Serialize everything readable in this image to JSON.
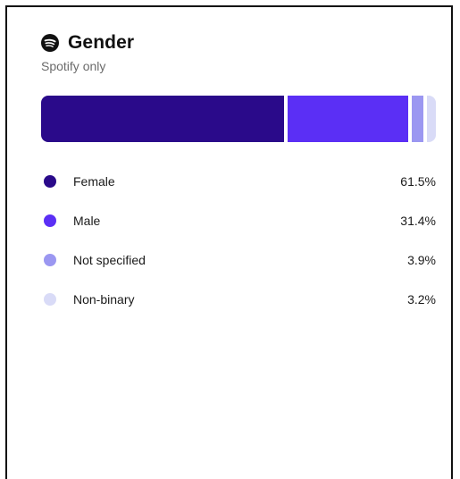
{
  "card": {
    "title": "Gender",
    "subtitle": "Spotify only",
    "icon": "spotify-logo-icon"
  },
  "chart_data": {
    "type": "bar",
    "orientation": "horizontal-stacked",
    "title": "Gender",
    "subtitle": "Spotify only",
    "categories": [
      "Female",
      "Male",
      "Not specified",
      "Non-binary"
    ],
    "values": [
      61.5,
      31.4,
      3.9,
      3.2
    ],
    "value_labels": [
      "61.5%",
      "31.4%",
      "3.9%",
      "3.2%"
    ],
    "unit": "%",
    "colors": [
      "#2a0a8a",
      "#5b2ff5",
      "#9b97f1",
      "#d9dbf7"
    ],
    "legend": "below",
    "grid": false
  }
}
